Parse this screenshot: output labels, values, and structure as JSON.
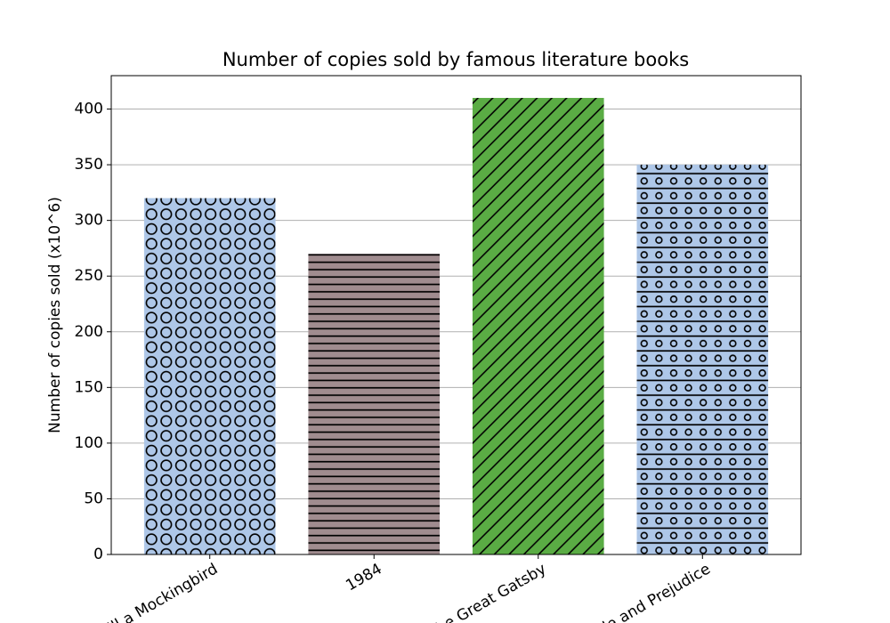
{
  "chart_data": {
    "type": "bar",
    "title": "Number of copies sold by famous literature books",
    "y_label": "Number of copies sold (x10^6)",
    "categories": [
      "To Kill a Mockingbird",
      "1984",
      "The Great Gatsby",
      "Pride and Prejudice"
    ],
    "values": [
      320,
      270,
      410,
      350
    ],
    "colors": [
      "#aec7e8",
      "#a08c8f",
      "#5aac44",
      "#aec7e8"
    ],
    "hatches": [
      "O",
      "-",
      "/",
      "o-"
    ],
    "ylim": [
      0,
      430
    ],
    "yticks": [
      0,
      50,
      100,
      150,
      200,
      250,
      300,
      350,
      400
    ],
    "grid": true
  }
}
